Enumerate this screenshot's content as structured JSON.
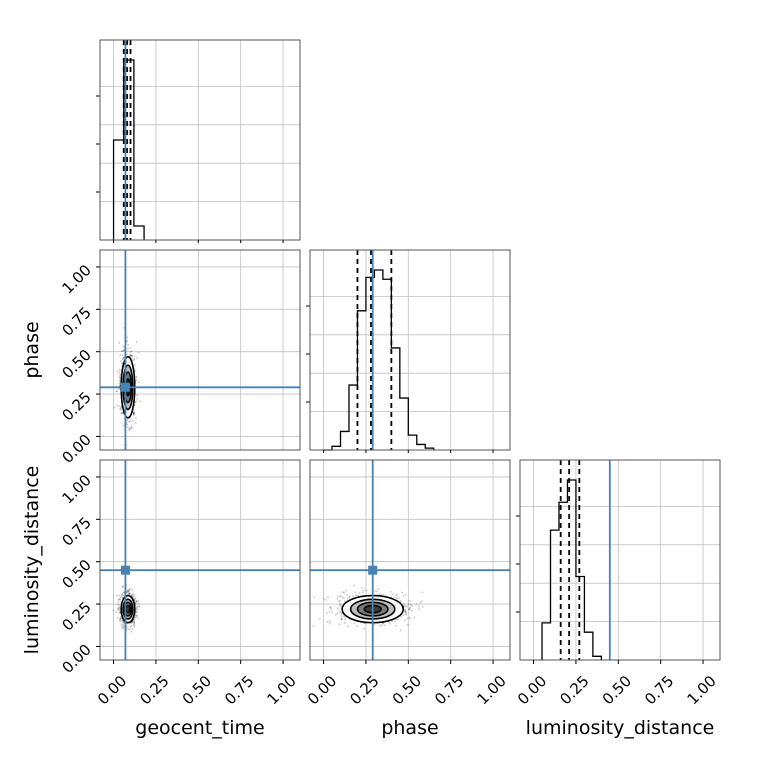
{
  "chart_data": {
    "type": "corner",
    "parameters": [
      "geocent_time",
      "phase",
      "luminosity_distance"
    ],
    "axis_range": [
      -0.08,
      1.1
    ],
    "tick_values": [
      0.0,
      0.25,
      0.5,
      0.75,
      1.0
    ],
    "tick_labels": [
      "0.00",
      "0.25",
      "0.50",
      "0.75",
      "1.00"
    ],
    "truths": {
      "geocent_time": 0.07,
      "phase": 0.29,
      "luminosity_distance": 0.45
    },
    "quantiles": {
      "geocent_time": [
        0.06,
        0.08,
        0.1
      ],
      "phase": [
        0.2,
        0.28,
        0.4
      ],
      "luminosity_distance": [
        0.16,
        0.21,
        0.27
      ]
    },
    "histograms": {
      "geocent_time": {
        "edges": [
          0.0,
          0.06,
          0.12,
          0.18
        ],
        "counts": [
          0.5,
          0.9,
          0.07
        ]
      },
      "phase": {
        "edges": [
          0.0,
          0.05,
          0.1,
          0.15,
          0.2,
          0.25,
          0.3,
          0.35,
          0.4,
          0.45,
          0.5,
          0.55,
          0.6,
          0.65
        ],
        "counts": [
          0.0,
          0.02,
          0.1,
          0.35,
          0.75,
          0.93,
          0.97,
          0.92,
          0.55,
          0.28,
          0.08,
          0.03,
          0.01
        ]
      },
      "luminosity_distance": {
        "edges": [
          0.05,
          0.1,
          0.15,
          0.2,
          0.25,
          0.3,
          0.35,
          0.4
        ],
        "counts": [
          0.2,
          0.7,
          0.85,
          0.97,
          0.45,
          0.15,
          0.02
        ]
      }
    },
    "contours": [
      {
        "x": "geocent_time",
        "y": "phase",
        "center": [
          0.085,
          0.29
        ],
        "sigma": [
          0.02,
          0.09
        ]
      },
      {
        "x": "geocent_time",
        "y": "luminosity_distance",
        "center": [
          0.085,
          0.22
        ],
        "sigma": [
          0.02,
          0.04
        ]
      },
      {
        "x": "phase",
        "y": "luminosity_distance",
        "center": [
          0.29,
          0.22
        ],
        "sigma": [
          0.09,
          0.04
        ]
      }
    ],
    "colors": {
      "truth": "#4682b4",
      "hist": "#000000",
      "grid": "#c0c0c0"
    }
  }
}
